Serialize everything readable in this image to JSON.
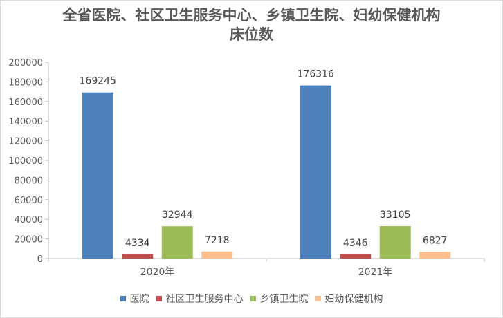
{
  "chart_data": {
    "type": "bar",
    "title": [
      "全省医院、社区卫生服务中心、乡镇卫生院、妇幼保健机构",
      "床位数"
    ],
    "categories": [
      "2020年",
      "2021年"
    ],
    "series": [
      {
        "name": "医院",
        "color": "#4f81bd",
        "values": [
          169245,
          176316
        ]
      },
      {
        "name": "社区卫生服务中心",
        "color": "#c0504d",
        "values": [
          4334,
          4346
        ]
      },
      {
        "name": "乡镇卫生院",
        "color": "#9bbb59",
        "values": [
          32944,
          33105
        ]
      },
      {
        "name": "妇幼保健机构",
        "color": "#fac090",
        "values": [
          7218,
          6827
        ]
      }
    ],
    "ylim": [
      0,
      200000
    ],
    "yticks": [
      0,
      20000,
      40000,
      60000,
      80000,
      100000,
      120000,
      140000,
      160000,
      180000,
      200000
    ],
    "grid": false,
    "legend_position": "bottom"
  }
}
